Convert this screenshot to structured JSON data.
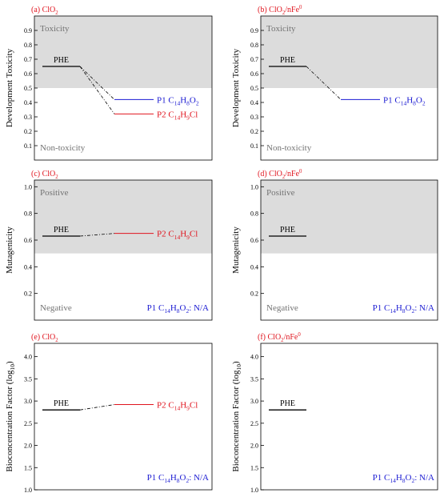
{
  "colors": {
    "label_red": "#e0141e",
    "blue": "#1a1ad2",
    "red": "#e0141e",
    "black": "#000000",
    "region_gray": "#dcdcdc",
    "region_text": "#737373"
  },
  "chart_data": [
    {
      "type": "line",
      "panel_label": {
        "prefix": "(a) ClO",
        "sub": "2",
        "rest": ""
      },
      "ylabel": "Development Toxicity",
      "ylim": [
        0,
        1.0
      ],
      "yticks": [
        0.1,
        0.2,
        0.3,
        0.4,
        0.5,
        0.6,
        0.7,
        0.8,
        0.9
      ],
      "threshold": 0.5,
      "region_upper": "Toxicity",
      "region_lower": "Non-toxicity",
      "parent": {
        "name": "PHE",
        "value": 0.65
      },
      "products": [
        {
          "name": "P1",
          "formula": [
            [
              "C",
              "n"
            ],
            [
              "14",
              "s"
            ],
            [
              "H",
              "n"
            ],
            [
              "8",
              "s"
            ],
            [
              "O",
              "n"
            ],
            [
              "2",
              "s"
            ]
          ],
          "value": 0.42,
          "color": "blue"
        },
        {
          "name": "P2",
          "formula": [
            [
              "C",
              "n"
            ],
            [
              "14",
              "s"
            ],
            [
              "H",
              "n"
            ],
            [
              "9",
              "s"
            ],
            [
              "Cl",
              "n"
            ]
          ],
          "value": 0.32,
          "color": "red"
        }
      ],
      "na_note": null
    },
    {
      "type": "line",
      "panel_label": {
        "prefix": "(b) ClO",
        "sub": "2",
        "rest": "/nFe",
        "sup": "0"
      },
      "ylabel": "Development Toxicity",
      "ylim": [
        0,
        1.0
      ],
      "yticks": [
        0.1,
        0.2,
        0.3,
        0.4,
        0.5,
        0.6,
        0.7,
        0.8,
        0.9
      ],
      "threshold": 0.5,
      "region_upper": "Toxicity",
      "region_lower": "Non-toxicity",
      "parent": {
        "name": "PHE",
        "value": 0.65
      },
      "products": [
        {
          "name": "P1",
          "formula": [
            [
              "C",
              "n"
            ],
            [
              "14",
              "s"
            ],
            [
              "H",
              "n"
            ],
            [
              "8",
              "s"
            ],
            [
              "O",
              "n"
            ],
            [
              "2",
              "s"
            ]
          ],
          "value": 0.42,
          "color": "blue"
        }
      ],
      "na_note": null
    },
    {
      "type": "line",
      "panel_label": {
        "prefix": "(c) ClO",
        "sub": "2",
        "rest": ""
      },
      "ylabel": "Mutagenicity",
      "ylim": [
        0,
        1.05
      ],
      "yticks": [
        0.2,
        0.4,
        0.6,
        0.8,
        1.0
      ],
      "threshold": 0.5,
      "region_upper": "Positive",
      "region_lower": "Negative",
      "parent": {
        "name": "PHE",
        "value": 0.63
      },
      "products": [
        {
          "name": "P2",
          "formula": [
            [
              "C",
              "n"
            ],
            [
              "14",
              "s"
            ],
            [
              "H",
              "n"
            ],
            [
              "9",
              "s"
            ],
            [
              "Cl",
              "n"
            ]
          ],
          "value": 0.65,
          "color": "red"
        }
      ],
      "na_note": {
        "text": "P1 C14H8O2: N/A",
        "parts": [
          [
            "P1 C",
            "n"
          ],
          [
            "14",
            "s"
          ],
          [
            "H",
            "n"
          ],
          [
            "8",
            "s"
          ],
          [
            "O",
            "n"
          ],
          [
            "2",
            "s"
          ],
          [
            ": N/A",
            "n"
          ]
        ]
      }
    },
    {
      "type": "line",
      "panel_label": {
        "prefix": "(d) ClO",
        "sub": "2",
        "rest": "/nFe",
        "sup": "0"
      },
      "ylabel": "Mutagenicity",
      "ylim": [
        0,
        1.05
      ],
      "yticks": [
        0.2,
        0.4,
        0.6,
        0.8,
        1.0
      ],
      "threshold": 0.5,
      "region_upper": "Positive",
      "region_lower": "Negative",
      "parent": {
        "name": "PHE",
        "value": 0.63
      },
      "products": [],
      "na_note": {
        "text": "P1 C14H8O2: N/A",
        "parts": [
          [
            "P1 C",
            "n"
          ],
          [
            "14",
            "s"
          ],
          [
            "H",
            "n"
          ],
          [
            "8",
            "s"
          ],
          [
            "O",
            "n"
          ],
          [
            "2",
            "s"
          ],
          [
            ": N/A",
            "n"
          ]
        ]
      }
    },
    {
      "type": "line",
      "panel_label": {
        "prefix": "(e) ClO",
        "sub": "2",
        "rest": ""
      },
      "ylabel": "Bioconcentration Factor (log10)",
      "ylabel_parts": [
        [
          "Bioconcentration Factor (log",
          "n"
        ],
        [
          "10",
          "s"
        ],
        [
          ")",
          "n"
        ]
      ],
      "ylim": [
        1.0,
        4.3
      ],
      "yticks": [
        1.0,
        1.5,
        2.0,
        2.5,
        3.0,
        3.5,
        4.0
      ],
      "threshold": null,
      "region_upper": null,
      "region_lower": null,
      "parent": {
        "name": "PHE",
        "value": 2.8
      },
      "products": [
        {
          "name": "P2",
          "formula": [
            [
              "C",
              "n"
            ],
            [
              "14",
              "s"
            ],
            [
              "H",
              "n"
            ],
            [
              "9",
              "s"
            ],
            [
              "Cl",
              "n"
            ]
          ],
          "value": 2.92,
          "color": "red"
        }
      ],
      "na_note": {
        "text": "P1 C14H8O2: N/A",
        "parts": [
          [
            "P1 C",
            "n"
          ],
          [
            "14",
            "s"
          ],
          [
            "H",
            "n"
          ],
          [
            "8",
            "s"
          ],
          [
            "O",
            "n"
          ],
          [
            "2",
            "s"
          ],
          [
            ": N/A",
            "n"
          ]
        ]
      }
    },
    {
      "type": "line",
      "panel_label": {
        "prefix": "(f) ClO",
        "sub": "2",
        "rest": "/nFe",
        "sup": "0"
      },
      "ylabel": "Bioconcentration Factor (log10)",
      "ylabel_parts": [
        [
          "Bioconcentration Factor (log",
          "n"
        ],
        [
          "10",
          "s"
        ],
        [
          ")",
          "n"
        ]
      ],
      "ylim": [
        1.0,
        4.3
      ],
      "yticks": [
        1.0,
        1.5,
        2.0,
        2.5,
        3.0,
        3.5,
        4.0
      ],
      "threshold": null,
      "region_upper": null,
      "region_lower": null,
      "parent": {
        "name": "PHE",
        "value": 2.8
      },
      "products": [],
      "na_note": {
        "text": "P1 C14H8O2: N/A",
        "parts": [
          [
            "P1 C",
            "n"
          ],
          [
            "14",
            "s"
          ],
          [
            "H",
            "n"
          ],
          [
            "8",
            "s"
          ],
          [
            "O",
            "n"
          ],
          [
            "2",
            "s"
          ],
          [
            ": N/A",
            "n"
          ]
        ]
      }
    }
  ]
}
